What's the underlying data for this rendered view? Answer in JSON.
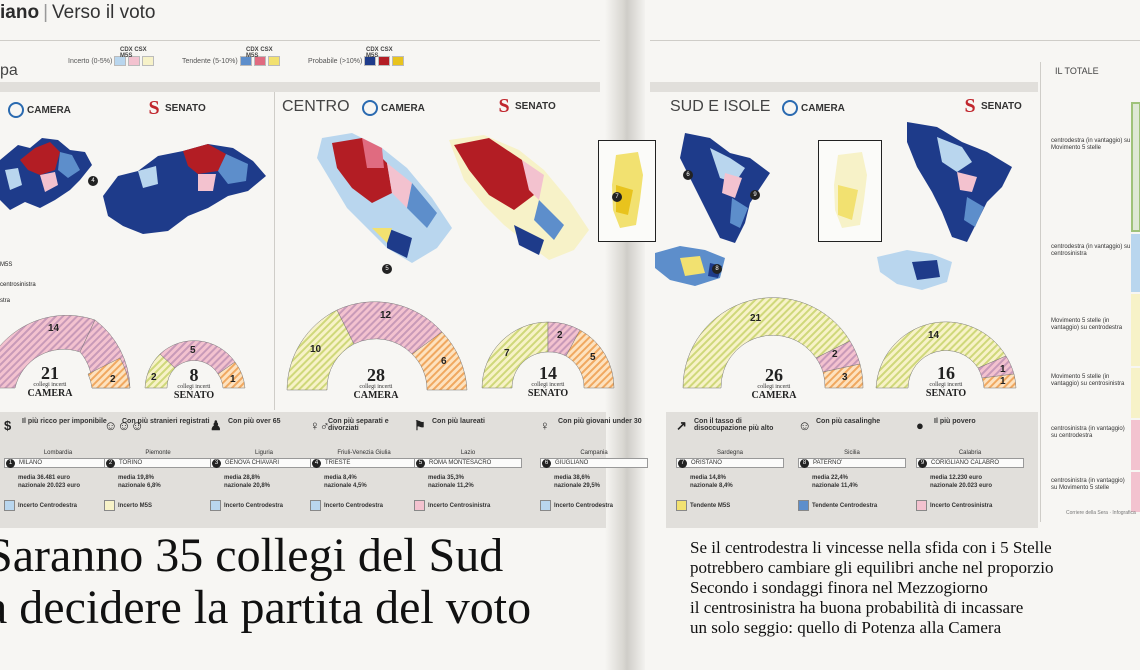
{
  "header": {
    "brand": "iano",
    "section": "Verso il voto"
  },
  "panel_left_title": "pa",
  "legend": {
    "header": "CDX CSX M5S",
    "items": [
      {
        "label": "Incerto (0-5%)",
        "colors": [
          "#b9d6ee",
          "#f3c2cf",
          "#f7f2c8"
        ]
      },
      {
        "label": "Tendente (5-10%)",
        "colors": [
          "#5d8ecb",
          "#e06b80",
          "#f2e170"
        ]
      },
      {
        "label": "Probabile (>10%)",
        "colors": [
          "#1e3b8a",
          "#b31d24",
          "#e8c31d"
        ]
      }
    ]
  },
  "houses": {
    "camera": "CAMERA",
    "senato": "SENATO"
  },
  "panels": [
    {
      "name": "",
      "camera": {
        "total": "21",
        "sub": "collegi incerti",
        "house": "CAMERA",
        "segments": [
          {
            "value": "14"
          },
          {
            "value": "2"
          }
        ]
      },
      "senato": {
        "total": "8",
        "sub": "collegi incerti",
        "house": "SENATO",
        "segments": [
          {
            "value": "2"
          },
          {
            "value": "5"
          },
          {
            "value": "1"
          }
        ]
      },
      "side_labels": [
        "M5S",
        "centrosinistra",
        "stra"
      ],
      "markers": [
        "4"
      ]
    },
    {
      "name": "CENTRO",
      "camera": {
        "total": "28",
        "sub": "collegi incerti",
        "house": "CAMERA",
        "segments": [
          {
            "value": "10"
          },
          {
            "value": "12"
          },
          {
            "value": "6"
          }
        ]
      },
      "senato": {
        "total": "14",
        "sub": "collegi incerti",
        "house": "SENATO",
        "segments": [
          {
            "value": "7"
          },
          {
            "value": "2"
          },
          {
            "value": "5"
          }
        ]
      },
      "markers": [
        "5"
      ]
    },
    {
      "name": "SUD E ISOLE",
      "camera": {
        "total": "26",
        "sub": "collegi incerti",
        "house": "CAMERA",
        "segments": [
          {
            "value": "21"
          },
          {
            "value": "2"
          },
          {
            "value": "3"
          }
        ]
      },
      "senato": {
        "total": "16",
        "sub": "collegi incerti",
        "house": "SENATO",
        "segments": [
          {
            "value": "14"
          },
          {
            "value": "1"
          },
          {
            "value": "1"
          }
        ]
      },
      "markers": [
        "6",
        "7",
        "8",
        "9"
      ]
    }
  ],
  "stats": [
    {
      "icon": "coins-icon",
      "title": "Il più ricco per imponibile",
      "region": "Lombardia",
      "num": "1",
      "city": "MILANO",
      "vals": [
        "media 36.481 euro",
        "nazionale 20.023 euro"
      ],
      "tag": "Incerto Centrodestra",
      "tag_color": "#b9d6ee"
    },
    {
      "icon": "people-icon",
      "title": "Con più stranieri registrati",
      "region": "Piemonte",
      "num": "2",
      "city": "TORINO",
      "vals": [
        "media 19,8%",
        "nazionale 6,8%"
      ],
      "tag": "Incerto M5S",
      "tag_color": "#f7f2c8"
    },
    {
      "icon": "elder-icon",
      "title": "Con più over 65",
      "region": "Liguria",
      "num": "3",
      "city": "GENOVA CHIAVARI",
      "vals": [
        "media 28,8%",
        "nazionale 20,8%"
      ],
      "tag": "Incerto Centrodestra",
      "tag_color": "#b9d6ee"
    },
    {
      "icon": "couple-icon",
      "title": "Con più separati e divorziati",
      "region": "Friuli-Venezia Giulia",
      "num": "4",
      "city": "TRIESTE",
      "vals": [
        "media 8,4%",
        "nazionale 4,5%"
      ],
      "tag": "Incerto Centrodestra",
      "tag_color": "#b9d6ee"
    },
    {
      "icon": "graduate-icon",
      "title": "Con più laureati",
      "region": "Lazio",
      "num": "5",
      "city": "ROMA MONTESACRO",
      "vals": [
        "media 35,3%",
        "nazionale 11,2%"
      ],
      "tag": "Incerto Centrosinistra",
      "tag_color": "#f3c2cf"
    },
    {
      "icon": "young-icon",
      "title": "Con più giovani under 30",
      "region": "Campania",
      "num": "6",
      "city": "GIUGLIANO",
      "vals": [
        "media 38,6%",
        "nazionale 29,5%"
      ],
      "tag": "Incerto Centrodestra",
      "tag_color": "#b9d6ee"
    },
    {
      "icon": "trend-icon",
      "title": "Con il tasso di disoccupazione più alto",
      "region": "Sardegna",
      "num": "7",
      "city": "ORISTANO",
      "vals": [
        "media 14,8%",
        "nazionale 8,4%"
      ],
      "tag": "Tendente M5S",
      "tag_color": "#f2e170"
    },
    {
      "icon": "housewife-icon",
      "title": "Con più casalinghe",
      "region": "Sicilia",
      "num": "8",
      "city": "PATERNO'",
      "vals": [
        "media 22,4%",
        "nazionale 11,4%"
      ],
      "tag": "Tendente Centrodestra",
      "tag_color": "#5d8ecb"
    },
    {
      "icon": "poor-icon",
      "title": "Il più povero",
      "region": "Calabria",
      "num": "9",
      "city": "CORIGLIANO CALABRO",
      "vals": [
        "media 12.230 euro",
        "nazionale 20.023 euro"
      ],
      "tag": "Incerto Centrosinistra",
      "tag_color": "#f3c2cf"
    }
  ],
  "totale": {
    "title": "IL TOTALE",
    "labels": [
      "centrodestra (in vantaggio) su Movimento 5 stelle",
      "centrodestra (in vantaggio) su centrosinistra",
      "Movimento 5 stelle (in vantaggio) su centrodestra",
      "Movimento 5 stelle (in vantaggio) su centrosinistra",
      "centrosinistra (in vantaggio) su centrodestra",
      "centrosinistra (in vantaggio) su Movimento 5 stelle"
    ],
    "credit": "Corriere della Sera · Infografica"
  },
  "headline": [
    "Saranno 35 collegi del Sud",
    "a decidere la partita del voto"
  ],
  "deck": [
    "Se il centrodestra li vincesse nella sfida con i 5 Stelle",
    "potrebbero cambiare gli equilibri anche nel proporzio",
    "Secondo i sondaggi finora nel Mezzogiorno",
    "il centrosinistra ha buona probabilità di incassare",
    "un solo seggio: quello di Potenza alla Camera"
  ]
}
